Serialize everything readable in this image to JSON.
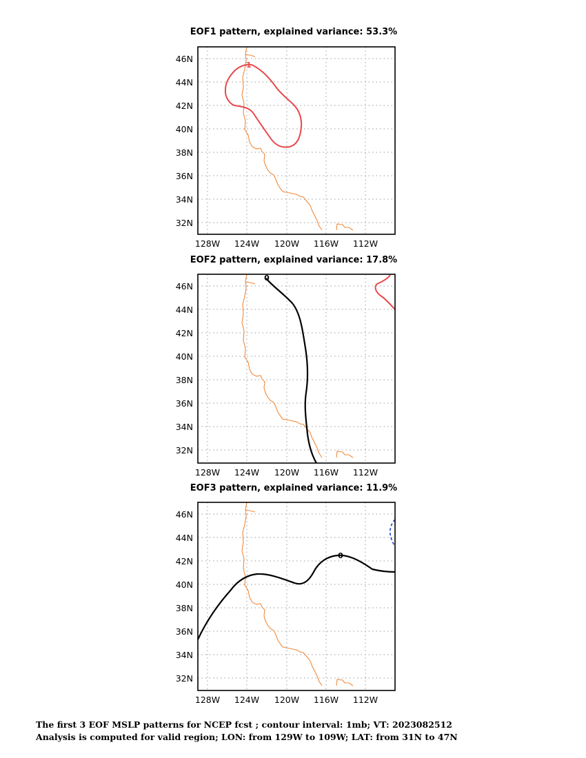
{
  "panels": [
    {
      "title": "EOF1 pattern, explained variance: 53.3%",
      "contours": [
        {
          "label": "1",
          "color": "#e8474a",
          "style": "solid"
        }
      ]
    },
    {
      "title": "EOF2 pattern, explained variance: 17.8%",
      "contours": [
        {
          "label": "0",
          "color": "#000000",
          "style": "solid"
        },
        {
          "label": "",
          "color": "#e8474a",
          "style": "solid"
        }
      ]
    },
    {
      "title": "EOF3 pattern, explained variance: 11.9%",
      "contours": [
        {
          "label": "0",
          "color": "#000000",
          "style": "solid"
        },
        {
          "label": "",
          "color": "#1f3fd8",
          "style": "dashed"
        }
      ]
    }
  ],
  "lat_ticks": [
    "46N",
    "44N",
    "42N",
    "40N",
    "38N",
    "36N",
    "34N",
    "32N"
  ],
  "lon_ticks": [
    "128W",
    "124W",
    "120W",
    "116W",
    "112W"
  ],
  "colors": {
    "positive": "#e8474a",
    "zero": "#000000",
    "negative": "#1f3fd8",
    "coast": "#f0893a",
    "grid": "#9a9a9a"
  },
  "footer": {
    "line1": "The first 3 EOF MSLP patterns for NCEP fcst ; contour interval: 1mb; VT: 2023082512",
    "line2": "Analysis is computed for valid region; LON: from 129W to 109W; LAT: from 31N to 47N"
  }
}
